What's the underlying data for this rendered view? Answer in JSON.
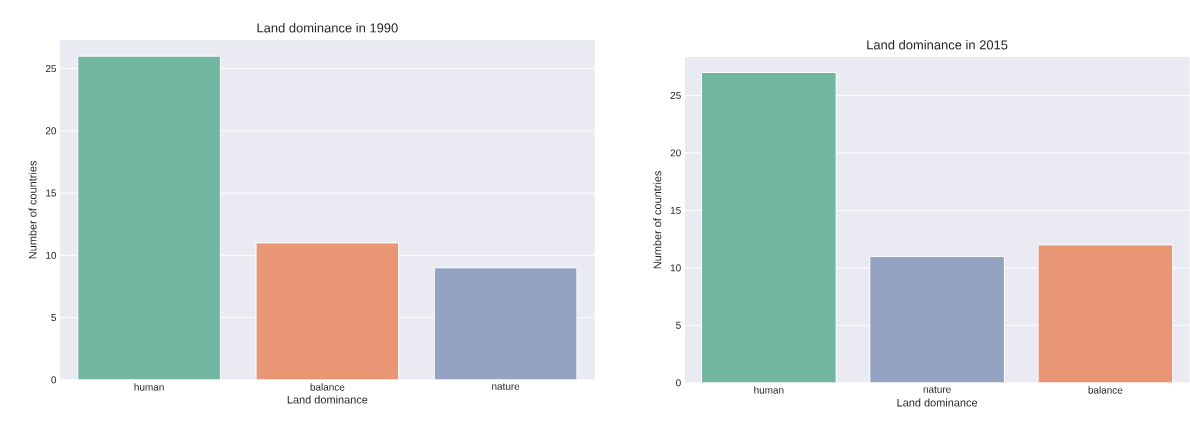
{
  "chart_data": [
    {
      "type": "bar",
      "title": "Land dominance in 1990",
      "xlabel": "Land dominance",
      "ylabel": "Number of countries",
      "categories": [
        "human",
        "balance",
        "nature"
      ],
      "values": [
        26,
        11,
        9
      ],
      "colors": [
        "#72b6a1",
        "#e99675",
        "#95a3c3"
      ],
      "ylim": [
        0,
        27.3
      ],
      "yticks": [
        0,
        5,
        10,
        15,
        20,
        25
      ],
      "grid": "y"
    },
    {
      "type": "bar",
      "title": "Land dominance in 2015",
      "xlabel": "Land dominance",
      "ylabel": "Number of countries",
      "categories": [
        "human",
        "nature",
        "balance"
      ],
      "values": [
        27,
        11,
        12
      ],
      "colors": [
        "#72b6a1",
        "#95a3c3",
        "#e99675"
      ],
      "ylim": [
        0,
        28.35
      ],
      "yticks": [
        0,
        5,
        10,
        15,
        20,
        25
      ],
      "grid": "y"
    }
  ]
}
